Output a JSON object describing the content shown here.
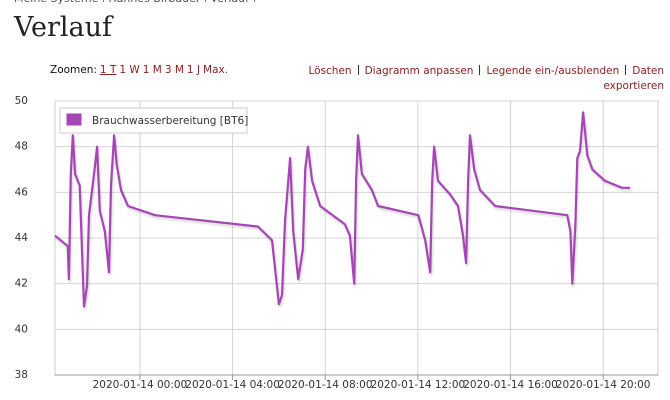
{
  "breadcrumb": [
    "Meine Systeme",
    "Hannes Birbauer",
    "Verlauf"
  ],
  "heading": "Verlauf",
  "toolbar": {
    "zoom_label": "Zoomen:",
    "zoom_options": [
      "1 T",
      "1 W",
      "1 M",
      "3 M",
      "1 J",
      "Max."
    ],
    "actions": [
      "Löschen",
      "Diagramm anpassen",
      "Legende ein-/ausblenden",
      "Daten exportieren"
    ]
  },
  "chart_data": {
    "type": "line",
    "x": [
      "2020-01-13 20:20",
      "2020-01-13 20:53",
      "2020-01-13 20:56",
      "2020-01-13 21:01",
      "2020-01-13 21:06",
      "2020-01-13 21:12",
      "2020-01-13 21:24",
      "2020-01-13 21:35",
      "2020-01-13 21:43",
      "2020-01-13 21:48",
      "2020-01-13 22:01",
      "2020-01-13 22:09",
      "2020-01-13 22:16",
      "2020-01-13 22:29",
      "2020-01-13 22:40",
      "2020-01-13 22:45",
      "2020-01-13 22:53",
      "2020-01-13 23:00",
      "2020-01-13 23:11",
      "2020-01-13 23:29",
      "2020-01-14 00:39",
      "2020-01-14 05:06",
      "2020-01-14 05:42",
      "2020-01-14 06:00",
      "2020-01-14 06:08",
      "2020-01-14 06:16",
      "2020-01-14 06:29",
      "2020-01-14 06:37",
      "2020-01-14 06:50",
      "2020-01-14 07:02",
      "2020-01-14 07:08",
      "2020-01-14 07:15",
      "2020-01-14 07:26",
      "2020-01-14 07:47",
      "2020-01-14 08:51",
      "2020-01-14 09:04",
      "2020-01-14 09:15",
      "2020-01-14 09:20",
      "2020-01-14 09:25",
      "2020-01-14 09:35",
      "2020-01-14 10:01",
      "2020-01-14 10:17",
      "2020-01-14 12:01",
      "2020-01-14 12:19",
      "2020-01-14 12:32",
      "2020-01-14 12:37",
      "2020-01-14 12:42",
      "2020-01-14 12:52",
      "2020-01-14 13:24",
      "2020-01-14 13:44",
      "2020-01-14 13:57",
      "2020-01-14 14:05",
      "2020-01-14 14:10",
      "2020-01-14 14:15",
      "2020-01-14 14:26",
      "2020-01-14 14:41",
      "2020-01-14 15:20",
      "2020-01-14 18:27",
      "2020-01-14 18:35",
      "2020-01-14 18:40",
      "2020-01-14 18:48",
      "2020-01-14 18:53",
      "2020-01-14 19:00",
      "2020-01-14 19:08",
      "2020-01-14 19:19",
      "2020-01-14 19:32",
      "2020-01-14 20:05",
      "2020-01-14 20:49",
      "2020-01-14 21:10"
    ],
    "series": [
      {
        "name": "Brauchwasserbereitung [BT6]",
        "color": "#a646b5",
        "values": [
          44.1,
          43.65,
          42.2,
          46.8,
          48.5,
          46.8,
          46.3,
          41.0,
          41.9,
          45.0,
          46.8,
          48.0,
          45.2,
          44.3,
          42.5,
          46.3,
          48.5,
          47.2,
          46.1,
          45.4,
          45.0,
          44.5,
          43.9,
          41.1,
          41.5,
          44.8,
          47.5,
          44.3,
          42.2,
          43.5,
          47.0,
          48.0,
          46.5,
          45.4,
          44.6,
          44.1,
          42.0,
          46.5,
          48.5,
          46.8,
          46.1,
          45.4,
          45.0,
          43.9,
          42.5,
          46.5,
          48.0,
          46.5,
          45.9,
          45.4,
          44.1,
          42.9,
          46.5,
          48.5,
          47.0,
          46.1,
          45.4,
          45.0,
          44.3,
          42.0,
          44.6,
          47.5,
          47.8,
          49.5,
          47.6,
          47.0,
          46.5,
          46.2,
          46.2
        ]
      }
    ],
    "xlim": [
      "2020-01-13 20:20",
      "2020-01-14 22:22"
    ],
    "xticks": [
      "2020-01-14 00:00",
      "2020-01-14 04:00",
      "2020-01-14 08:00",
      "2020-01-14 12:00",
      "2020-01-14 16:00",
      "2020-01-14 20:00"
    ],
    "ylim": [
      38,
      50
    ],
    "yticks": [
      38,
      40,
      42,
      44,
      46,
      48,
      50
    ],
    "grid": true,
    "legend": "top-left"
  }
}
